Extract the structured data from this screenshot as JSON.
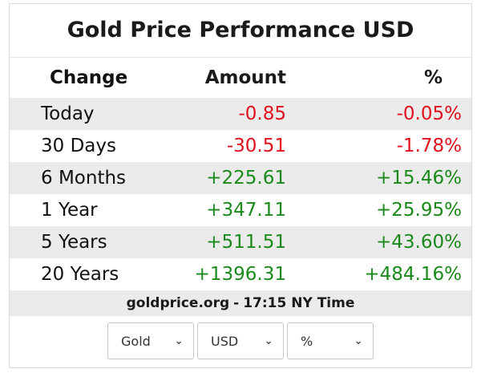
{
  "title": "Gold Price Performance USD",
  "table": {
    "headers": {
      "change": "Change",
      "amount": "Amount",
      "percent": "%"
    },
    "rows": [
      {
        "change": "Today",
        "amount": "-0.85",
        "percent": "-0.05%",
        "trend": "neg"
      },
      {
        "change": "30 Days",
        "amount": "-30.51",
        "percent": "-1.78%",
        "trend": "neg"
      },
      {
        "change": "6 Months",
        "amount": "+225.61",
        "percent": "+15.46%",
        "trend": "pos"
      },
      {
        "change": "1 Year",
        "amount": "+347.11",
        "percent": "+25.95%",
        "trend": "pos"
      },
      {
        "change": "5 Years",
        "amount": "+511.51",
        "percent": "+43.60%",
        "trend": "pos"
      },
      {
        "change": "20 Years",
        "amount": "+1396.31",
        "percent": "+484.16%",
        "trend": "pos"
      }
    ]
  },
  "footer": {
    "source": "goldprice.org",
    "separator": "-",
    "time": "17:15 NY Time"
  },
  "selects": {
    "metal": "Gold",
    "currency": "USD",
    "unit": "%"
  },
  "colors": {
    "negative": "#e0101c",
    "positive": "#1a8a1a",
    "stripe": "#ebebeb"
  },
  "icons": {
    "dropdown": "chevron-down-icon"
  }
}
